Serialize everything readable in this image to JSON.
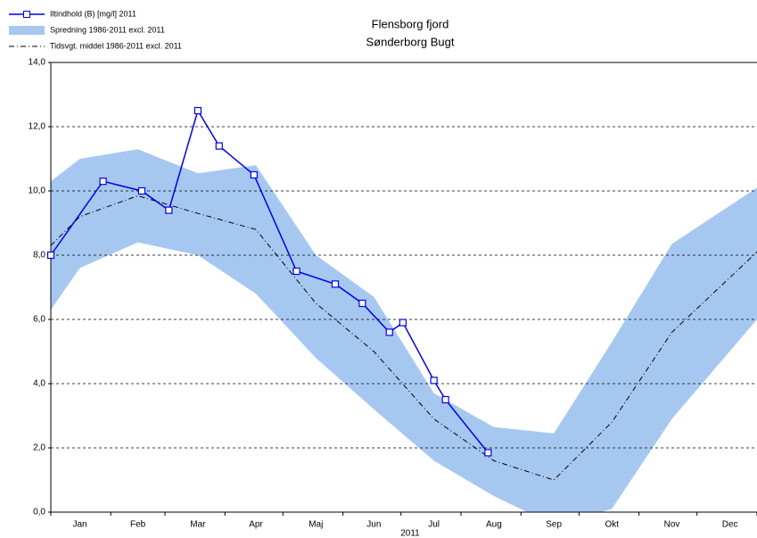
{
  "chart_data": {
    "type": "line",
    "title": "Flensborg fjord",
    "subtitle": "Sønderborg Bugt",
    "x_label": "2011",
    "xlim": [
      0,
      365
    ],
    "xticks": [
      {
        "value": 15,
        "label": "Jan"
      },
      {
        "value": 45,
        "label": "Feb"
      },
      {
        "value": 76,
        "label": "Mar"
      },
      {
        "value": 106,
        "label": "Apr"
      },
      {
        "value": 137,
        "label": "Maj"
      },
      {
        "value": 167,
        "label": "Jun"
      },
      {
        "value": 198,
        "label": "Jul"
      },
      {
        "value": 229,
        "label": "Aug"
      },
      {
        "value": 260,
        "label": "Sep"
      },
      {
        "value": 290,
        "label": "Okt"
      },
      {
        "value": 321,
        "label": "Nov"
      },
      {
        "value": 351,
        "label": "Dec"
      }
    ],
    "xminor": [
      0,
      31,
      59,
      90,
      120,
      151,
      181,
      212,
      243,
      273,
      304,
      334,
      365
    ],
    "ylim": [
      0,
      14
    ],
    "yticks": [
      {
        "value": 0,
        "label": "0,0"
      },
      {
        "value": 2,
        "label": "2,0"
      },
      {
        "value": 4,
        "label": "4,0"
      },
      {
        "value": 6,
        "label": "6,0"
      },
      {
        "value": 8,
        "label": "8,0"
      },
      {
        "value": 10,
        "label": "10,0"
      },
      {
        "value": 12,
        "label": "12,0"
      },
      {
        "value": 14,
        "label": "14,0"
      }
    ],
    "grid": true,
    "legend": "top-left",
    "series": [
      {
        "name": "Iltindhold (B) [mg/l] 2011",
        "color": "#0000ee",
        "marker": "square",
        "x": [
          0,
          27,
          47,
          61,
          76,
          87,
          105,
          127,
          147,
          161,
          175,
          182,
          198,
          204,
          226
        ],
        "values": [
          8.0,
          10.3,
          10.0,
          9.4,
          12.5,
          11.4,
          10.5,
          7.5,
          7.1,
          6.5,
          5.6,
          5.9,
          4.1,
          3.5,
          1.85
        ]
      },
      {
        "name": "Tidsvgt. middel 1986-2011 excl. 2011",
        "color": "#000000",
        "dash": "dashdot",
        "x": [
          0,
          15,
          45,
          76,
          106,
          137,
          167,
          198,
          229,
          260,
          290,
          321,
          365
        ],
        "values": [
          8.3,
          9.2,
          9.85,
          9.3,
          8.8,
          6.5,
          5.0,
          2.9,
          1.6,
          1.0,
          2.8,
          5.6,
          8.1
        ]
      }
    ],
    "band": {
      "name": "Spredning 1986-2011 excl. 2011",
      "color": "#a6c8f0",
      "x": [
        0,
        15,
        45,
        76,
        106,
        137,
        167,
        198,
        229,
        260,
        290,
        321,
        365
      ],
      "upper": [
        10.3,
        11.0,
        11.3,
        10.55,
        10.8,
        8.0,
        6.7,
        3.7,
        2.65,
        2.45,
        5.3,
        8.35,
        10.1
      ],
      "lower": [
        6.3,
        7.6,
        8.4,
        8.0,
        6.8,
        4.8,
        3.2,
        1.6,
        0.5,
        -0.4,
        0.1,
        2.9,
        6.0
      ]
    }
  }
}
